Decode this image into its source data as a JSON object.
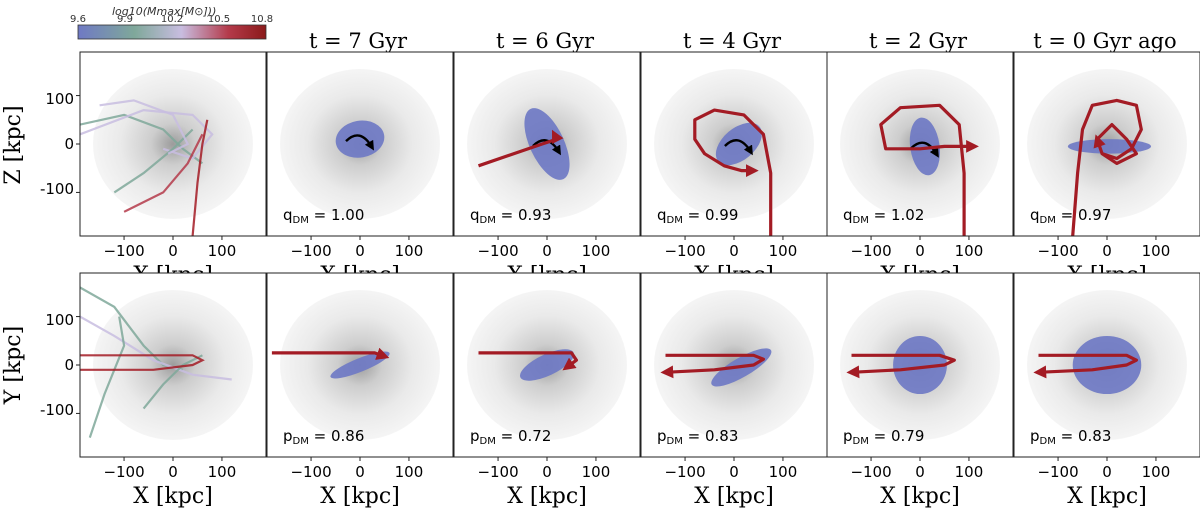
{
  "chart_data": {
    "type": "scatter",
    "description_units": "kpc",
    "colorbar": {
      "label": "log10(Mmax[M⊙]))",
      "ticks": [
        "9.6",
        "9.9",
        "10.2",
        "10.5",
        "10.8"
      ],
      "range": [
        9.6,
        10.8
      ],
      "colors": [
        "#6f79c4",
        "#7fa89a",
        "#c8bde0",
        "#b43a4a",
        "#8b1a1a"
      ]
    },
    "column_titles": [
      "",
      "t = 7 Gyr",
      "t = 6 Gyr",
      "t = 4 Gyr",
      "t = 2 Gyr",
      "t = 0 Gyr ago"
    ],
    "rows": [
      {
        "ylabel": "Z [kpc]",
        "param_symbol": "q",
        "param_sub": "DM",
        "values": [
          "",
          "= 1.00",
          "= 0.93",
          "= 0.99",
          "= 1.02",
          "= 0.97"
        ]
      },
      {
        "ylabel": "Y [kpc]",
        "param_symbol": "p",
        "param_sub": "DM",
        "values": [
          "",
          "= 0.86",
          "= 0.72",
          "= 0.83",
          "= 0.79",
          "= 0.83"
        ]
      }
    ],
    "xlabel": "X [kpc]",
    "xticks": [
      -100,
      0,
      100
    ],
    "yticks": [
      100,
      0,
      -100
    ],
    "xlim": [
      -190,
      190
    ],
    "ylim": [
      -190,
      190
    ],
    "ellipses": [
      [
        null,
        {
          "cx": 0,
          "cy": 10,
          "rx": 50,
          "ry": 38,
          "rot": -10
        },
        {
          "cx": 0,
          "cy": 0,
          "rx": 35,
          "ry": 80,
          "rot": -25
        },
        {
          "cx": 10,
          "cy": 0,
          "rx": 55,
          "ry": 33,
          "rot": -40
        },
        {
          "cx": 10,
          "cy": -5,
          "rx": 30,
          "ry": 60,
          "rot": -8
        },
        {
          "cx": 5,
          "cy": -5,
          "rx": 85,
          "ry": 15,
          "rot": 0
        }
      ],
      [
        null,
        {
          "cx": 0,
          "cy": 0,
          "rx": 65,
          "ry": 14,
          "rot": -22
        },
        {
          "cx": 0,
          "cy": 0,
          "rx": 60,
          "ry": 22,
          "rot": -25
        },
        {
          "cx": 15,
          "cy": -5,
          "rx": 70,
          "ry": 20,
          "rot": -30
        },
        {
          "cx": 0,
          "cy": 0,
          "rx": 55,
          "ry": 60,
          "rot": 0
        },
        {
          "cx": 0,
          "cy": 0,
          "rx": 70,
          "ry": 60,
          "rot": 0
        }
      ]
    ],
    "orbits": {
      "top": [
        [],
        [],
        [
          [
            -140,
            -45
          ],
          [
            -10,
            0
          ],
          [
            20,
            10
          ],
          [
            15,
            20
          ]
        ],
        [
          [
            75,
            -190
          ],
          [
            75,
            -60
          ],
          [
            60,
            20
          ],
          [
            20,
            60
          ],
          [
            -40,
            70
          ],
          [
            -80,
            50
          ],
          [
            -80,
            10
          ],
          [
            -60,
            -20
          ],
          [
            -20,
            -45
          ],
          [
            15,
            -55
          ],
          [
            40,
            -55
          ]
        ],
        [
          [
            90,
            -190
          ],
          [
            90,
            -60
          ],
          [
            80,
            40
          ],
          [
            40,
            80
          ],
          [
            -40,
            75
          ],
          [
            -80,
            40
          ],
          [
            -70,
            -10
          ],
          [
            0,
            -10
          ],
          [
            50,
            -5
          ],
          [
            80,
            -5
          ],
          [
            110,
            -5
          ]
        ],
        [
          [
            -70,
            -190
          ],
          [
            -60,
            -60
          ],
          [
            -50,
            30
          ],
          [
            -30,
            80
          ],
          [
            20,
            90
          ],
          [
            60,
            80
          ],
          [
            70,
            30
          ],
          [
            50,
            -10
          ],
          [
            20,
            -30
          ],
          [
            -10,
            -20
          ],
          [
            -20,
            10
          ],
          [
            10,
            40
          ],
          [
            40,
            10
          ],
          [
            60,
            -20
          ],
          [
            20,
            -40
          ],
          [
            -10,
            -20
          ],
          [
            -20,
            10
          ]
        ]
      ],
      "bottom": [
        [],
        [
          [
            -180,
            25
          ],
          [
            -40,
            25
          ],
          [
            30,
            25
          ],
          [
            50,
            18
          ]
        ],
        [
          [
            -140,
            25
          ],
          [
            -20,
            25
          ],
          [
            50,
            25
          ],
          [
            60,
            10
          ],
          [
            40,
            -5
          ]
        ],
        [
          [
            -140,
            20
          ],
          [
            -40,
            20
          ],
          [
            40,
            20
          ],
          [
            60,
            12
          ],
          [
            40,
            0
          ],
          [
            -40,
            -10
          ],
          [
            -140,
            -15
          ]
        ],
        [
          [
            -140,
            20
          ],
          [
            -40,
            20
          ],
          [
            40,
            20
          ],
          [
            70,
            10
          ],
          [
            50,
            0
          ],
          [
            -40,
            -10
          ],
          [
            -140,
            -15
          ]
        ],
        [
          [
            -140,
            20
          ],
          [
            -40,
            20
          ],
          [
            40,
            20
          ],
          [
            60,
            10
          ],
          [
            40,
            0
          ],
          [
            -30,
            -10
          ],
          [
            -140,
            -15
          ]
        ]
      ]
    }
  }
}
